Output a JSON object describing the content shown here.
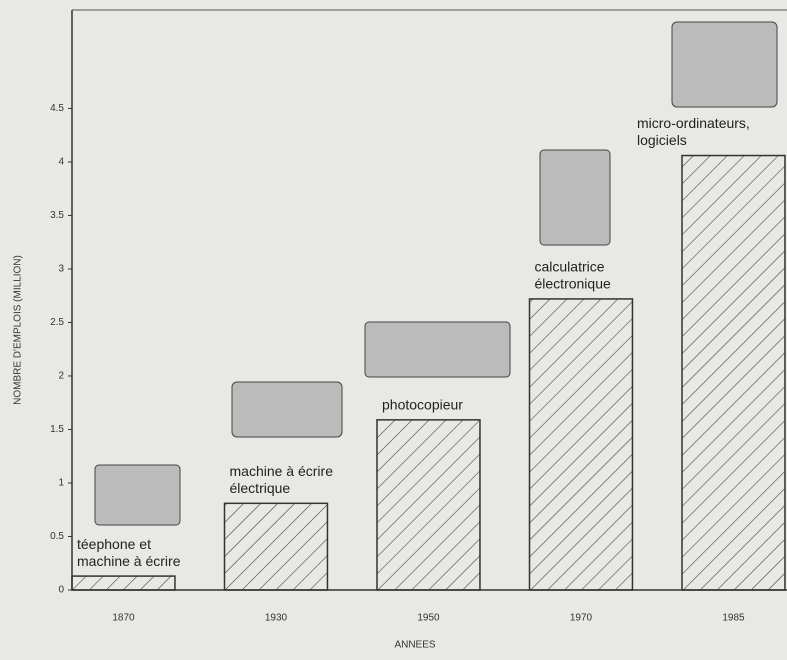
{
  "chart_data": {
    "type": "bar",
    "categories": [
      "1870",
      "1930",
      "1950",
      "1970",
      "1985"
    ],
    "values": [
      0.13,
      0.81,
      1.59,
      2.72,
      4.06
    ],
    "bar_labels": [
      [
        "téephone et",
        "machine à écrire"
      ],
      [
        "machine à écrire",
        "électrique"
      ],
      [
        "photocopieur"
      ],
      [
        "calculatrice",
        "électronique"
      ],
      [
        "micro-ordinateurs,",
        "logiciels"
      ]
    ],
    "color": "#333333",
    "ylim": [
      0,
      5.42
    ],
    "yticks": [
      0,
      0.5,
      1,
      1.5,
      2,
      2.5,
      3,
      3.5,
      4,
      4.5
    ],
    "ylabel": "NOMBRE D'EMPLOIS (MILLION)",
    "xlabel": "ANNEES",
    "grid": false
  }
}
